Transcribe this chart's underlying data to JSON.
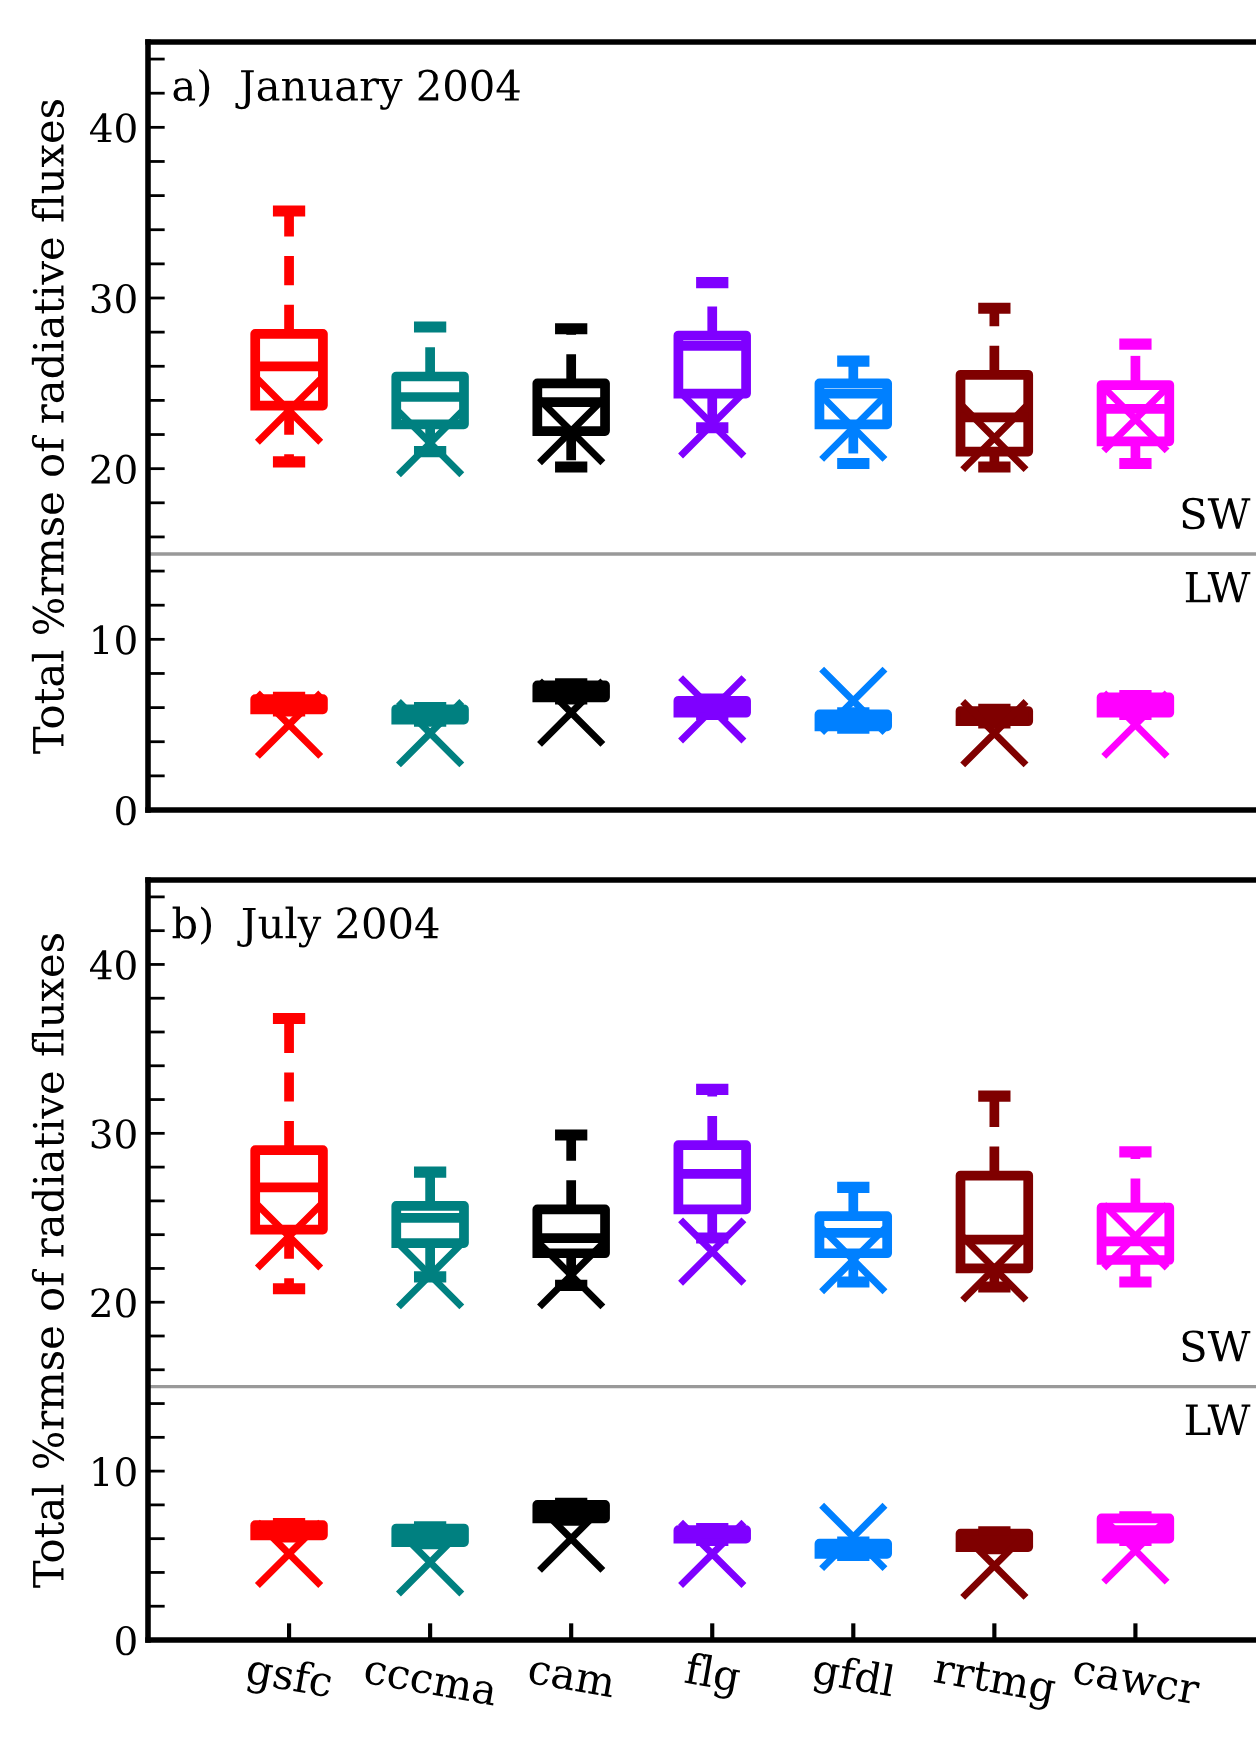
{
  "chart_data": [
    {
      "type": "box",
      "title": "a)  January 2004",
      "ylabel": "Total %rmse of radiative fluxes",
      "categories": [
        "gsfc",
        "cccma",
        "cam",
        "flg",
        "gfdl",
        "rrtmg",
        "cawcr"
      ],
      "ylim": [
        0,
        45
      ],
      "yticks": [
        0,
        {
          "value": 2,
          "label": null
        },
        {
          "value": 4,
          "label": null
        },
        {
          "value": 6,
          "label": null
        },
        {
          "value": 8,
          "label": null
        },
        10,
        {
          "value": 12,
          "label": null
        },
        {
          "value": 14,
          "label": null
        },
        {
          "value": 16,
          "label": null
        },
        {
          "value": 18,
          "label": null
        },
        20,
        {
          "value": 22,
          "label": null
        },
        {
          "value": 24,
          "label": null
        },
        {
          "value": 26,
          "label": null
        },
        {
          "value": 28,
          "label": null
        },
        30,
        {
          "value": 32,
          "label": null
        },
        {
          "value": 34,
          "label": null
        },
        {
          "value": 36,
          "label": null
        },
        {
          "value": 38,
          "label": null
        },
        40,
        {
          "value": 42,
          "label": null
        },
        {
          "value": 44,
          "label": null
        }
      ],
      "tick_labels": "y",
      "grid": false,
      "legend": false,
      "line_style": "dashed",
      "ref_lines": [
        {
          "axis": "y",
          "value": 15,
          "color": "#999999"
        }
      ],
      "annotations": [
        "SW",
        "LW"
      ],
      "series": [
        {
          "colors": [
            "#ff0000",
            "#008080",
            "#000000",
            "#7f00ff",
            "#0080ff",
            "#7f0000",
            "#ff00ff"
          ],
          "boxes": [
            {
              "low": 20.4,
              "q1": 23.7,
              "median": 26.0,
              "q3": 27.9,
              "high": 35.1
            },
            {
              "low": 21.0,
              "q1": 22.6,
              "median": 24.2,
              "q3": 25.4,
              "high": 28.3
            },
            {
              "low": 20.1,
              "q1": 22.2,
              "median": 23.9,
              "q3": 25.0,
              "high": 28.2
            },
            {
              "low": 22.4,
              "q1": 24.4,
              "median": 27.2,
              "q3": 27.8,
              "high": 30.9
            },
            {
              "low": 20.3,
              "q1": 22.6,
              "median": 24.4,
              "q3": 25.0,
              "high": 26.3
            },
            {
              "low": 20.1,
              "q1": 21.0,
              "median": 23.0,
              "q3": 25.5,
              "high": 29.4
            },
            {
              "low": 20.3,
              "q1": 21.6,
              "median": 23.5,
              "q3": 24.9,
              "high": 27.3
            }
          ]
        },
        {
          "colors": [
            "#ff0000",
            "#008080",
            "#000000",
            "#7f00ff",
            "#0080ff",
            "#7f0000",
            "#ff00ff"
          ],
          "boxes": [
            {
              "low": 5.8,
              "q1": 5.9,
              "median": 6.2,
              "q3": 6.5,
              "high": 6.6
            },
            {
              "low": 5.2,
              "q1": 5.3,
              "median": 5.6,
              "q3": 5.9,
              "high": 6.0
            },
            {
              "low": 6.5,
              "q1": 6.6,
              "median": 7.0,
              "q3": 7.3,
              "high": 7.4
            },
            {
              "low": 5.6,
              "q1": 5.7,
              "median": 6.0,
              "q3": 6.4,
              "high": 6.5
            },
            {
              "low": 4.8,
              "q1": 4.9,
              "median": 5.3,
              "q3": 5.6,
              "high": 5.7
            },
            {
              "low": 5.1,
              "q1": 5.2,
              "median": 5.5,
              "q3": 5.8,
              "high": 5.9
            },
            {
              "low": 5.6,
              "q1": 5.7,
              "median": 6.1,
              "q3": 6.6,
              "high": 6.7
            }
          ]
        },
        {
          "type": "scatter",
          "marker": "cross",
          "colors": [
            "#ff0000",
            "#008080",
            "#000000",
            "#7f00ff",
            "#0080ff",
            "#7f0000",
            "#ff00ff"
          ],
          "x": [
            "gsfc",
            "cccma",
            "cam",
            "flg",
            "gfdl",
            "rrtmg",
            "cawcr"
          ],
          "values": [
            23.4,
            21.5,
            22.2,
            22.6,
            22.4,
            21.8,
            22.9
          ]
        },
        {
          "type": "scatter",
          "marker": "cross",
          "colors": [
            "#ff0000",
            "#008080",
            "#000000",
            "#7f00ff",
            "#0080ff",
            "#7f0000",
            "#ff00ff"
          ],
          "x": [
            "gsfc",
            "cccma",
            "cam",
            "flg",
            "gfdl",
            "rrtmg",
            "cawcr"
          ],
          "values": [
            5.0,
            4.5,
            5.7,
            5.9,
            6.4,
            4.5,
            5.0
          ]
        }
      ]
    },
    {
      "type": "box",
      "title": "b)  July 2004",
      "ylabel": "Total %rmse of radiative fluxes",
      "categories": [
        "gsfc",
        "cccma",
        "cam",
        "flg",
        "gfdl",
        "rrtmg",
        "cawcr"
      ],
      "ylim": [
        0,
        45
      ],
      "yticks": [
        0,
        {
          "value": 2,
          "label": null
        },
        {
          "value": 4,
          "label": null
        },
        {
          "value": 6,
          "label": null
        },
        {
          "value": 8,
          "label": null
        },
        10,
        {
          "value": 12,
          "label": null
        },
        {
          "value": 14,
          "label": null
        },
        {
          "value": 16,
          "label": null
        },
        {
          "value": 18,
          "label": null
        },
        20,
        {
          "value": 22,
          "label": null
        },
        {
          "value": 24,
          "label": null
        },
        {
          "value": 26,
          "label": null
        },
        {
          "value": 28,
          "label": null
        },
        30,
        {
          "value": 32,
          "label": null
        },
        {
          "value": 34,
          "label": null
        },
        {
          "value": 36,
          "label": null
        },
        {
          "value": 38,
          "label": null
        },
        40,
        {
          "value": 42,
          "label": null
        },
        {
          "value": 44,
          "label": null
        }
      ],
      "grid": false,
      "legend": false,
      "line_style": "dashed",
      "ref_lines": [
        {
          "axis": "y",
          "value": 15,
          "color": "#999999"
        }
      ],
      "annotations": [
        "SW",
        "LW"
      ],
      "series": [
        {
          "colors": [
            "#ff0000",
            "#008080",
            "#000000",
            "#7f00ff",
            "#0080ff",
            "#7f0000",
            "#ff00ff"
          ],
          "boxes": [
            {
              "low": 20.8,
              "q1": 24.3,
              "median": 26.8,
              "q3": 29.0,
              "high": 36.8
            },
            {
              "low": 21.5,
              "q1": 23.5,
              "median": 25.0,
              "q3": 25.7,
              "high": 27.7
            },
            {
              "low": 21.0,
              "q1": 22.9,
              "median": 23.8,
              "q3": 25.5,
              "high": 29.9
            },
            {
              "low": 23.8,
              "q1": 25.5,
              "median": 27.6,
              "q3": 29.3,
              "high": 32.6
            },
            {
              "low": 21.2,
              "q1": 22.9,
              "median": 24.1,
              "q3": 25.1,
              "high": 26.8
            },
            {
              "low": 20.9,
              "q1": 22.0,
              "median": 23.7,
              "q3": 27.5,
              "high": 32.2
            },
            {
              "low": 21.2,
              "q1": 22.5,
              "median": 23.6,
              "q3": 25.6,
              "high": 28.9
            }
          ]
        },
        {
          "colors": [
            "#ff0000",
            "#008080",
            "#000000",
            "#7f00ff",
            "#0080ff",
            "#7f0000",
            "#ff00ff"
          ],
          "boxes": [
            {
              "low": 6.1,
              "q1": 6.2,
              "median": 6.5,
              "q3": 6.8,
              "high": 6.9
            },
            {
              "low": 5.7,
              "q1": 5.8,
              "median": 6.2,
              "q3": 6.6,
              "high": 6.7
            },
            {
              "low": 7.1,
              "q1": 7.2,
              "median": 7.6,
              "q3": 8.0,
              "high": 8.1
            },
            {
              "low": 5.9,
              "q1": 6.0,
              "median": 6.3,
              "q3": 6.5,
              "high": 6.6
            },
            {
              "low": 5.0,
              "q1": 5.1,
              "median": 5.4,
              "q3": 5.7,
              "high": 5.8
            },
            {
              "low": 5.4,
              "q1": 5.5,
              "median": 5.9,
              "q3": 6.3,
              "high": 6.4
            },
            {
              "low": 5.9,
              "q1": 6.0,
              "median": 6.5,
              "q3": 7.2,
              "high": 7.3
            }
          ]
        },
        {
          "type": "scatter",
          "marker": "cross",
          "colors": [
            "#ff0000",
            "#008080",
            "#000000",
            "#7f00ff",
            "#0080ff",
            "#7f0000",
            "#ff00ff"
          ],
          "x": [
            "gsfc",
            "cccma",
            "cam",
            "flg",
            "gfdl",
            "rrtmg",
            "cawcr"
          ],
          "values": [
            23.9,
            21.6,
            21.6,
            23.0,
            22.5,
            22.0,
            23.9
          ]
        },
        {
          "type": "scatter",
          "marker": "cross",
          "colors": [
            "#ff0000",
            "#008080",
            "#000000",
            "#7f00ff",
            "#0080ff",
            "#7f0000",
            "#ff00ff"
          ],
          "x": [
            "gsfc",
            "cccma",
            "cam",
            "flg",
            "gfdl",
            "rrtmg",
            "cawcr"
          ],
          "values": [
            5.1,
            4.6,
            6.0,
            5.1,
            6.1,
            4.4,
            5.3
          ]
        }
      ]
    }
  ]
}
